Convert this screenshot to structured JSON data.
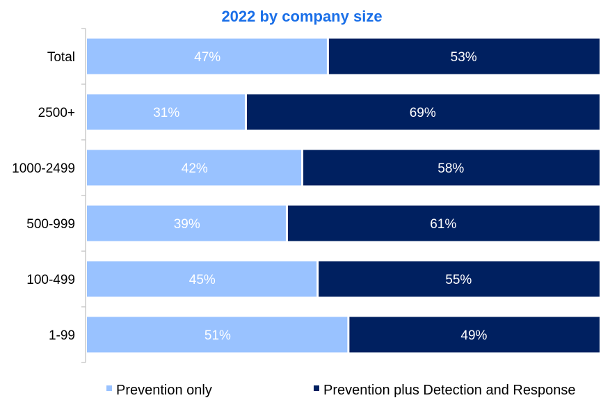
{
  "chart_data": {
    "type": "bar",
    "orientation": "horizontal",
    "stacked": true,
    "title": "2022 by company size",
    "categories": [
      "Total",
      "2500+",
      "1000-2499",
      "500-999",
      "100-499",
      "1-99"
    ],
    "series": [
      {
        "name": "Prevention only",
        "values": [
          47,
          31,
          42,
          39,
          45,
          51
        ],
        "labels": [
          "47%",
          "31%",
          "42%",
          "39%",
          "45%",
          "51%"
        ],
        "color": "#99c2ff"
      },
      {
        "name": "Prevention plus Detection and Response",
        "values": [
          53,
          69,
          58,
          61,
          55,
          49
        ],
        "labels": [
          "53%",
          "69%",
          "58%",
          "61%",
          "55%",
          "49%"
        ],
        "color": "#002060"
      }
    ],
    "xlim": [
      0,
      100
    ],
    "grid": false,
    "legend": "bottom"
  },
  "colors": {
    "title": "#1a6fe8",
    "axis": "#bfbfbf"
  }
}
